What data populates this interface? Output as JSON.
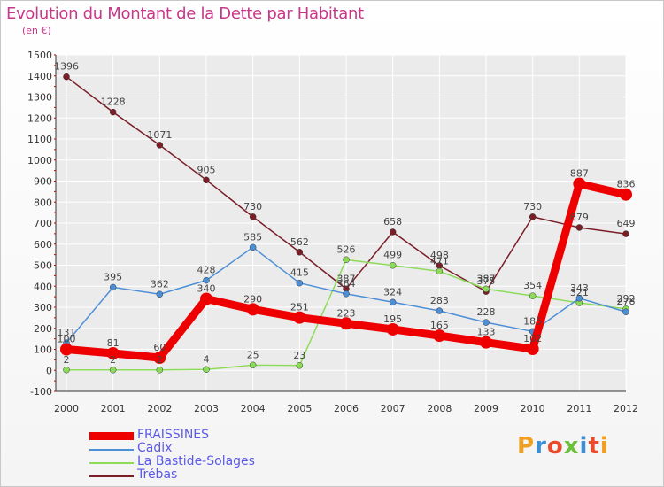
{
  "title": "Evolution du Montant de la Dette par Habitant",
  "unit": "(en €)",
  "brand": "Proxiti",
  "chart_data": {
    "type": "line",
    "title": "Evolution du Montant de la Dette par Habitant",
    "ylabel": "(en €)",
    "xlabel": "",
    "ylim": [
      -100,
      1500
    ],
    "yticks": [
      -100,
      0,
      100,
      200,
      300,
      400,
      500,
      600,
      700,
      800,
      900,
      1000,
      1100,
      1200,
      1300,
      1400,
      1500
    ],
    "categories": [
      "2000",
      "2001",
      "2002",
      "2003",
      "2004",
      "2005",
      "2006",
      "2007",
      "2008",
      "2009",
      "2010",
      "2011",
      "2012"
    ],
    "legend_position": "bottom-left",
    "grid": true,
    "series": [
      {
        "name": "FRAISSINES",
        "color": "#ee0000",
        "values": [
          100,
          81,
          60,
          340,
          290,
          251,
          223,
          195,
          165,
          133,
          102,
          887,
          836
        ]
      },
      {
        "name": "Cadix",
        "color": "#4d8fd6",
        "values": [
          131,
          395,
          362,
          428,
          585,
          415,
          364,
          324,
          283,
          228,
          185,
          343,
          278
        ]
      },
      {
        "name": "La Bastide-Solages",
        "color": "#8cdc5a",
        "values": [
          2,
          2,
          2,
          4,
          25,
          23,
          526,
          499,
          471,
          387,
          354,
          321,
          292
        ]
      },
      {
        "name": "Trébas",
        "color": "#7b1e28",
        "values": [
          1396,
          1228,
          1071,
          905,
          730,
          562,
          387,
          658,
          498,
          375,
          730,
          679,
          649
        ]
      }
    ]
  }
}
